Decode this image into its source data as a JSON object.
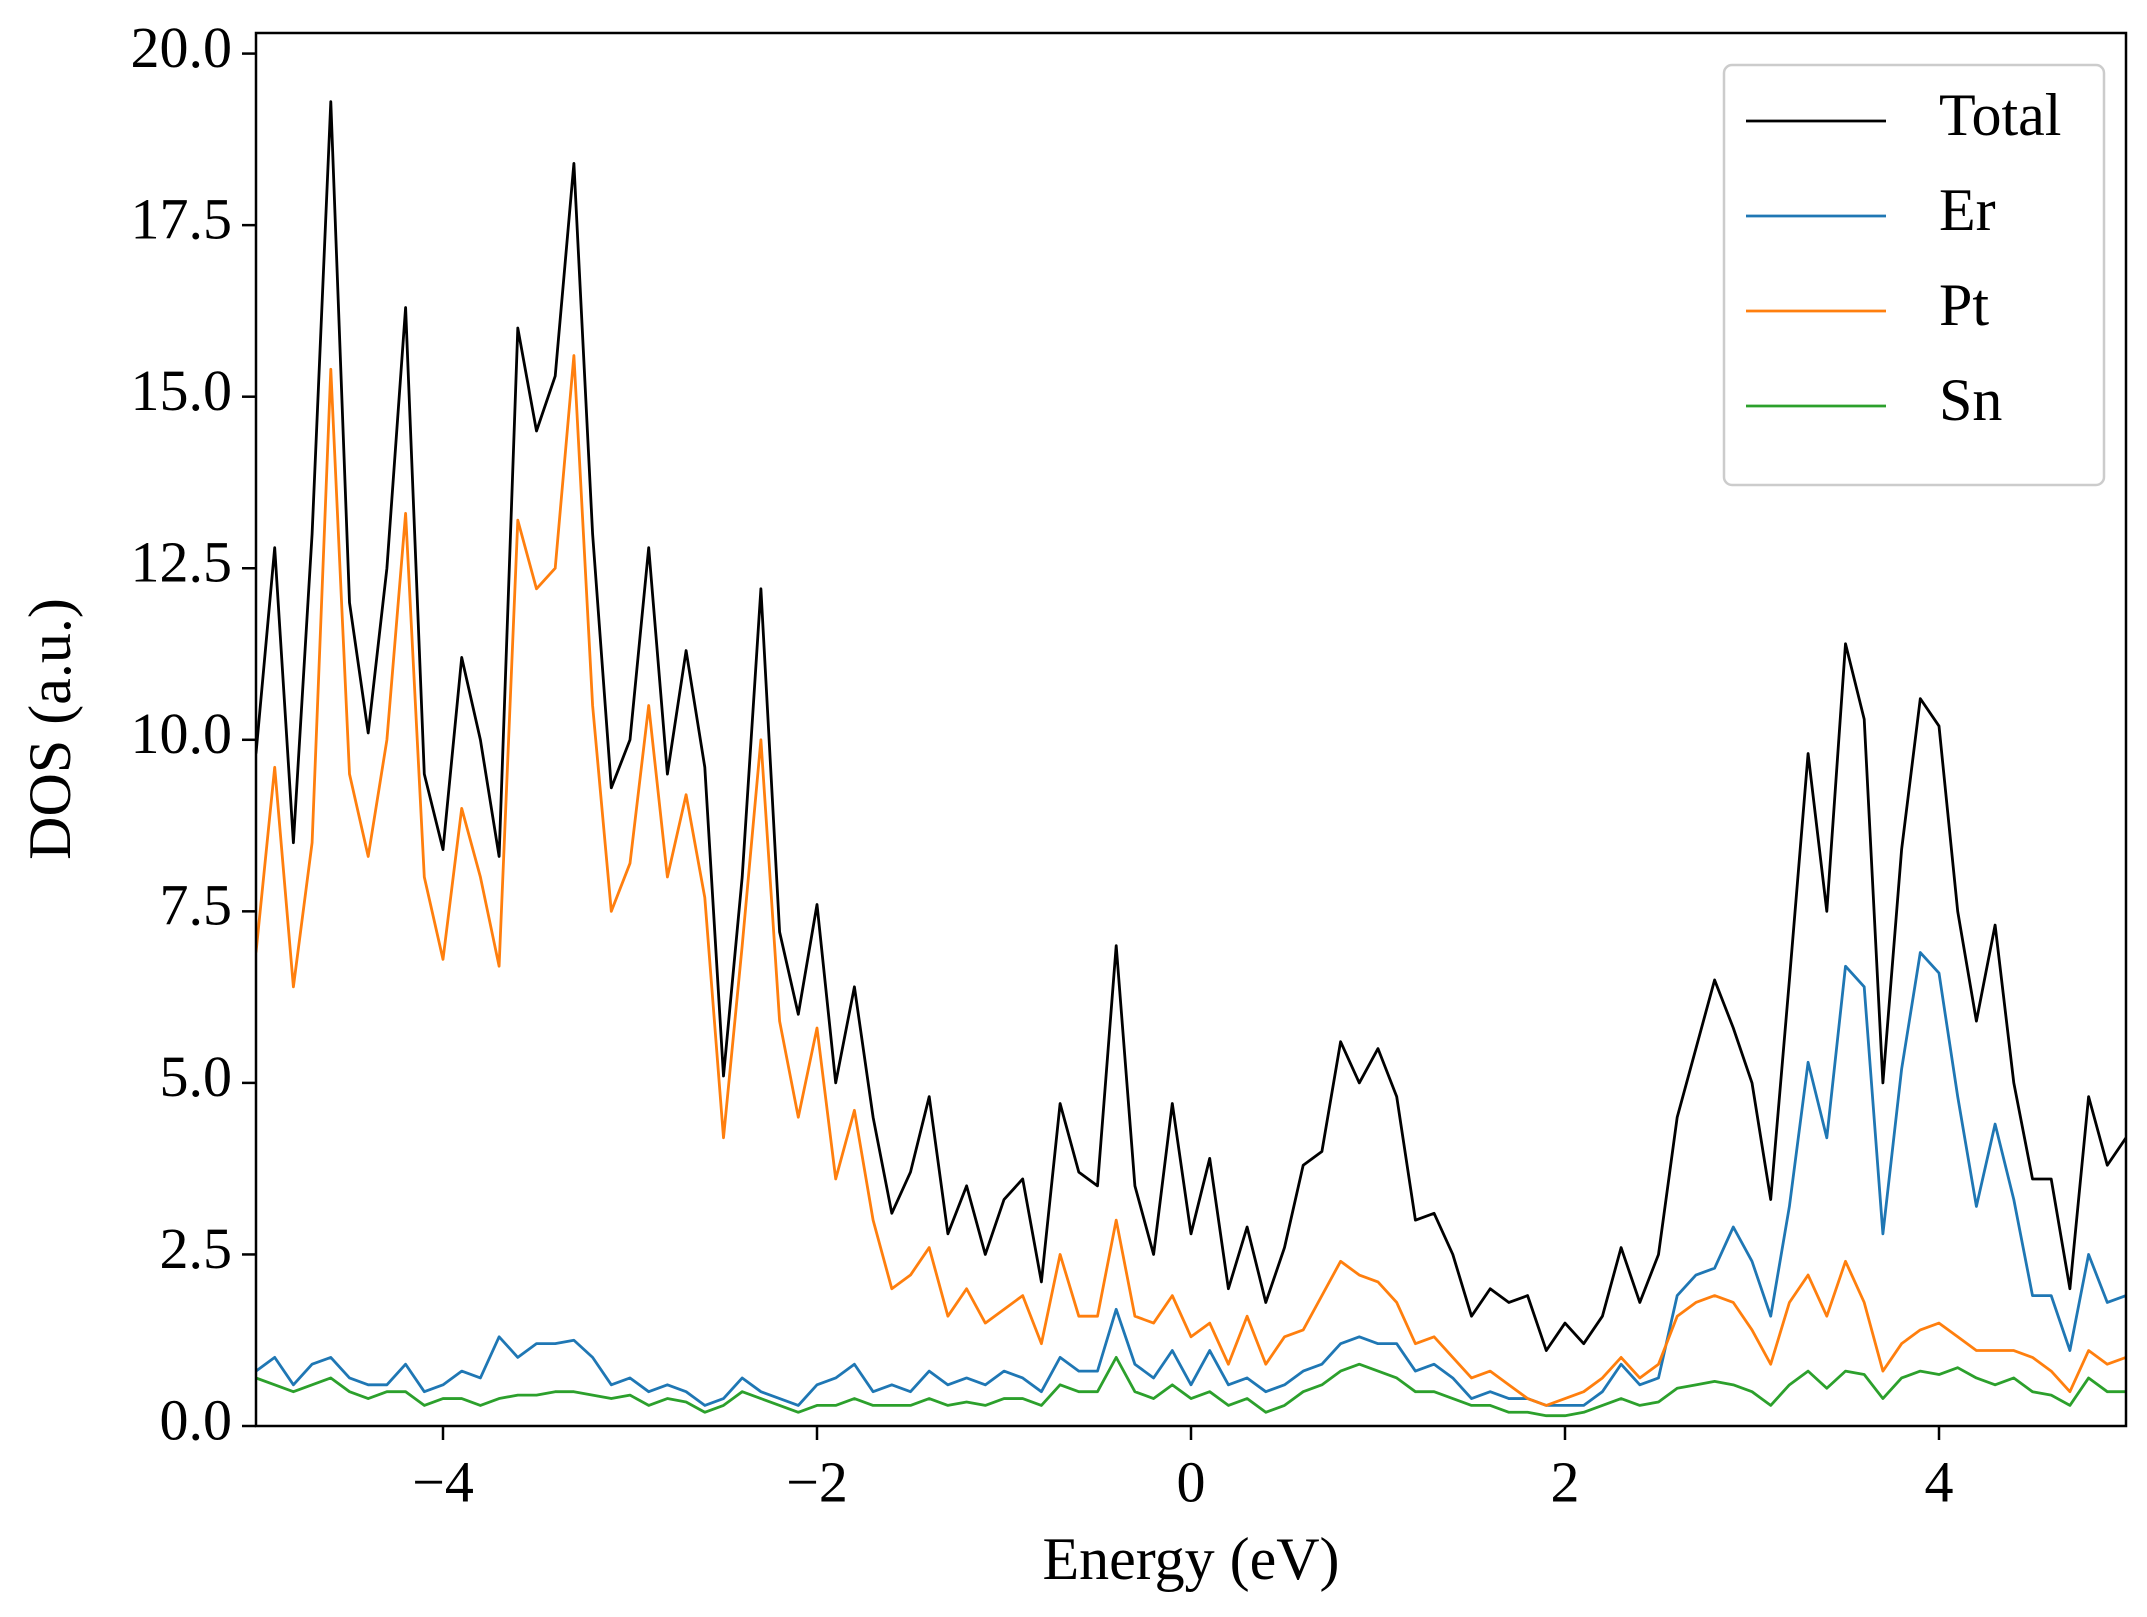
{
  "chart_data": {
    "type": "line",
    "xlabel": "Energy (eV)",
    "ylabel": "DOS (a.u.)",
    "xlim": [
      -5,
      5
    ],
    "ylim": [
      0,
      20.3
    ],
    "xticks": [
      {
        "value": -4,
        "label": "−4"
      },
      {
        "value": -2,
        "label": "−2"
      },
      0,
      2,
      4
    ],
    "yticks": [
      {
        "value": 0,
        "label": "0.0"
      },
      2.5,
      {
        "value": 5,
        "label": "5.0"
      },
      7.5,
      {
        "value": 10,
        "label": "10.0"
      },
      12.5,
      {
        "value": 15,
        "label": "15.0"
      },
      17.5,
      {
        "value": 20,
        "label": "20.0"
      }
    ],
    "legend": "upper right",
    "grid": false,
    "x": [
      -5.0,
      -4.9,
      -4.8,
      -4.7,
      -4.6,
      -4.5,
      -4.4,
      -4.3,
      -4.2,
      -4.1,
      -4.0,
      -3.9,
      -3.8,
      -3.7,
      -3.6,
      -3.5,
      -3.4,
      -3.3,
      -3.2,
      -3.1,
      -3.0,
      -2.9,
      -2.8,
      -2.7,
      -2.6,
      -2.5,
      -2.4,
      -2.3,
      -2.2,
      -2.1,
      -2.0,
      -1.9,
      -1.8,
      -1.7,
      -1.6,
      -1.5,
      -1.4,
      -1.3,
      -1.2,
      -1.1,
      -1.0,
      -0.9,
      -0.8,
      -0.7,
      -0.6,
      -0.5,
      -0.4,
      -0.3,
      -0.2,
      -0.1,
      0.0,
      0.1,
      0.2,
      0.3,
      0.4,
      0.5,
      0.6,
      0.7,
      0.8,
      0.9,
      1.0,
      1.1,
      1.2,
      1.3,
      1.4,
      1.5,
      1.6,
      1.7,
      1.8,
      1.9,
      2.0,
      2.1,
      2.2,
      2.3,
      2.4,
      2.5,
      2.6,
      2.7,
      2.8,
      2.9,
      3.0,
      3.1,
      3.2,
      3.3,
      3.4,
      3.5,
      3.6,
      3.7,
      3.8,
      3.9,
      4.0,
      4.1,
      4.2,
      4.3,
      4.4,
      4.5,
      4.6,
      4.7,
      4.8,
      4.9,
      5.0
    ],
    "series": [
      {
        "name": "Total",
        "color": "#000000",
        "values": [
          9.8,
          12.8,
          8.5,
          13.0,
          19.3,
          12.0,
          10.1,
          12.5,
          16.3,
          9.5,
          8.4,
          11.2,
          10.0,
          8.3,
          16.0,
          14.5,
          15.3,
          18.4,
          13.0,
          9.3,
          10.0,
          12.8,
          9.5,
          11.3,
          9.6,
          5.1,
          8.0,
          12.2,
          7.2,
          6.0,
          7.6,
          5.0,
          6.4,
          4.5,
          3.1,
          3.7,
          4.8,
          2.8,
          3.5,
          2.5,
          3.3,
          3.6,
          2.1,
          4.7,
          3.7,
          3.5,
          7.0,
          3.5,
          2.5,
          4.7,
          2.8,
          3.9,
          2.0,
          2.9,
          1.8,
          2.6,
          3.8,
          4.0,
          5.6,
          5.0,
          5.5,
          4.8,
          3.0,
          3.1,
          2.5,
          1.6,
          2.0,
          1.8,
          1.9,
          1.1,
          1.5,
          1.2,
          1.6,
          2.6,
          1.8,
          2.5,
          4.5,
          5.5,
          6.5,
          5.8,
          5.0,
          3.3,
          6.5,
          9.8,
          7.5,
          11.4,
          10.3,
          5.0,
          8.4,
          10.6,
          10.2,
          7.5,
          5.9,
          7.3,
          5.0,
          3.6,
          3.6,
          2.0,
          4.8,
          3.8,
          4.2
        ]
      },
      {
        "name": "Er",
        "color": "#1f77b4",
        "values": [
          0.8,
          1.0,
          0.6,
          0.9,
          1.0,
          0.7,
          0.6,
          0.6,
          0.9,
          0.5,
          0.6,
          0.8,
          0.7,
          1.3,
          1.0,
          1.2,
          1.2,
          1.25,
          1.0,
          0.6,
          0.7,
          0.5,
          0.6,
          0.5,
          0.3,
          0.4,
          0.7,
          0.5,
          0.4,
          0.3,
          0.6,
          0.7,
          0.9,
          0.5,
          0.6,
          0.5,
          0.8,
          0.6,
          0.7,
          0.6,
          0.8,
          0.7,
          0.5,
          1.0,
          0.8,
          0.8,
          1.7,
          0.9,
          0.7,
          1.1,
          0.6,
          1.1,
          0.6,
          0.7,
          0.5,
          0.6,
          0.8,
          0.9,
          1.2,
          1.3,
          1.2,
          1.2,
          0.8,
          0.9,
          0.7,
          0.4,
          0.5,
          0.4,
          0.4,
          0.3,
          0.3,
          0.3,
          0.5,
          0.9,
          0.6,
          0.7,
          1.9,
          2.2,
          2.3,
          2.9,
          2.4,
          1.6,
          3.2,
          5.3,
          4.2,
          6.7,
          6.4,
          2.8,
          5.2,
          6.9,
          6.6,
          4.8,
          3.2,
          4.4,
          3.3,
          1.9,
          1.9,
          1.1,
          2.5,
          1.8,
          1.9
        ]
      },
      {
        "name": "Pt",
        "color": "#ff7f0e",
        "values": [
          6.9,
          9.6,
          6.4,
          8.5,
          15.4,
          9.5,
          8.3,
          10.0,
          13.3,
          8.0,
          6.8,
          9.0,
          8.0,
          6.7,
          13.2,
          12.2,
          12.5,
          15.6,
          10.5,
          7.5,
          8.2,
          10.5,
          8.0,
          9.2,
          7.7,
          4.2,
          7.0,
          10.0,
          5.9,
          4.5,
          5.8,
          3.6,
          4.6,
          3.0,
          2.0,
          2.2,
          2.6,
          1.6,
          2.0,
          1.5,
          1.7,
          1.9,
          1.2,
          2.5,
          1.6,
          1.6,
          3.0,
          1.6,
          1.5,
          1.9,
          1.3,
          1.5,
          0.9,
          1.6,
          0.9,
          1.3,
          1.4,
          1.9,
          2.4,
          2.2,
          2.1,
          1.8,
          1.2,
          1.3,
          1.0,
          0.7,
          0.8,
          0.6,
          0.4,
          0.3,
          0.4,
          0.5,
          0.7,
          1.0,
          0.7,
          0.9,
          1.6,
          1.8,
          1.9,
          1.8,
          1.4,
          0.9,
          1.8,
          2.2,
          1.6,
          2.4,
          1.8,
          0.8,
          1.2,
          1.4,
          1.5,
          1.3,
          1.1,
          1.1,
          1.1,
          1.0,
          0.8,
          0.5,
          1.1,
          0.9,
          1.0
        ]
      },
      {
        "name": "Sn",
        "color": "#2ca02c",
        "values": [
          0.7,
          0.6,
          0.5,
          0.6,
          0.7,
          0.5,
          0.4,
          0.5,
          0.5,
          0.3,
          0.4,
          0.4,
          0.3,
          0.4,
          0.45,
          0.45,
          0.5,
          0.5,
          0.45,
          0.4,
          0.45,
          0.3,
          0.4,
          0.35,
          0.2,
          0.3,
          0.5,
          0.4,
          0.3,
          0.2,
          0.3,
          0.3,
          0.4,
          0.3,
          0.3,
          0.3,
          0.4,
          0.3,
          0.35,
          0.3,
          0.4,
          0.4,
          0.3,
          0.6,
          0.5,
          0.5,
          1.0,
          0.5,
          0.4,
          0.6,
          0.4,
          0.5,
          0.3,
          0.4,
          0.2,
          0.3,
          0.5,
          0.6,
          0.8,
          0.9,
          0.8,
          0.7,
          0.5,
          0.5,
          0.4,
          0.3,
          0.3,
          0.2,
          0.2,
          0.15,
          0.15,
          0.2,
          0.3,
          0.4,
          0.3,
          0.35,
          0.55,
          0.6,
          0.65,
          0.6,
          0.5,
          0.3,
          0.6,
          0.8,
          0.55,
          0.8,
          0.75,
          0.4,
          0.7,
          0.8,
          0.75,
          0.85,
          0.7,
          0.6,
          0.7,
          0.5,
          0.45,
          0.3,
          0.7,
          0.5,
          0.5
        ]
      }
    ]
  }
}
